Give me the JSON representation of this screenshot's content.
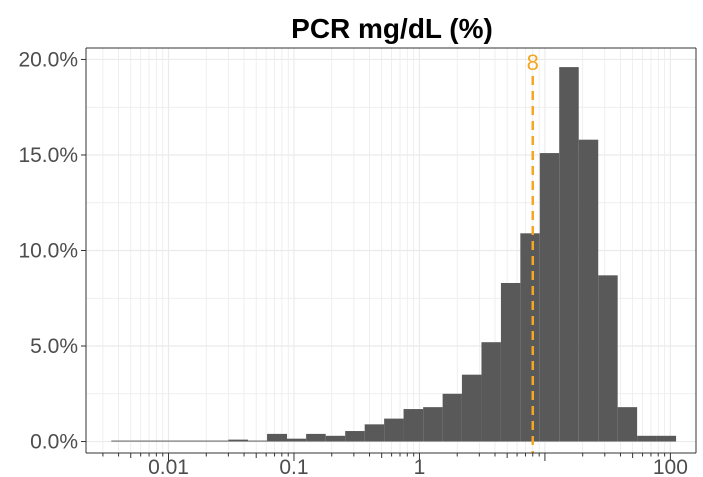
{
  "chart_data": {
    "type": "histogram",
    "title": "PCR mg/dL (%)",
    "xlabel": "",
    "ylabel": "",
    "x_scale": "log10",
    "xlim": [
      0.0022,
      160
    ],
    "ylim": [
      -0.6,
      20.6
    ],
    "grid": true,
    "x_ticks": [
      {
        "value": 0.01,
        "label": "0.01"
      },
      {
        "value": 0.1,
        "label": "0.1"
      },
      {
        "value": 1,
        "label": "1"
      },
      {
        "value": 100,
        "label": "100"
      }
    ],
    "y_ticks": [
      {
        "value": 0,
        "label": "0.0%"
      },
      {
        "value": 5,
        "label": "5.0%"
      },
      {
        "value": 10,
        "label": "10.0%"
      },
      {
        "value": 15,
        "label": "15.0%"
      },
      {
        "value": 20,
        "label": "20.0%"
      }
    ],
    "bins": [
      {
        "from": 0.0035,
        "to": 0.005,
        "value": 0.05
      },
      {
        "from": 0.005,
        "to": 0.0072,
        "value": 0.05
      },
      {
        "from": 0.0072,
        "to": 0.0103,
        "value": 0.05
      },
      {
        "from": 0.0103,
        "to": 0.0147,
        "value": 0.05
      },
      {
        "from": 0.0147,
        "to": 0.021,
        "value": 0.05
      },
      {
        "from": 0.021,
        "to": 0.03,
        "value": 0.05
      },
      {
        "from": 0.03,
        "to": 0.043,
        "value": 0.1
      },
      {
        "from": 0.043,
        "to": 0.061,
        "value": 0.05
      },
      {
        "from": 0.061,
        "to": 0.088,
        "value": 0.4
      },
      {
        "from": 0.088,
        "to": 0.125,
        "value": 0.15
      },
      {
        "from": 0.125,
        "to": 0.179,
        "value": 0.4
      },
      {
        "from": 0.179,
        "to": 0.256,
        "value": 0.3
      },
      {
        "from": 0.256,
        "to": 0.366,
        "value": 0.55
      },
      {
        "from": 0.366,
        "to": 0.523,
        "value": 0.9
      },
      {
        "from": 0.523,
        "to": 0.747,
        "value": 1.2
      },
      {
        "from": 0.747,
        "to": 1.07,
        "value": 1.7
      },
      {
        "from": 1.07,
        "to": 1.53,
        "value": 1.8
      },
      {
        "from": 1.53,
        "to": 2.18,
        "value": 2.5
      },
      {
        "from": 2.18,
        "to": 3.12,
        "value": 3.5
      },
      {
        "from": 3.12,
        "to": 4.46,
        "value": 5.2
      },
      {
        "from": 4.46,
        "to": 6.37,
        "value": 8.3
      },
      {
        "from": 6.37,
        "to": 9.1,
        "value": 10.9
      },
      {
        "from": 9.1,
        "to": 13.0,
        "value": 15.1
      },
      {
        "from": 13.0,
        "to": 18.6,
        "value": 19.6
      },
      {
        "from": 18.6,
        "to": 26.6,
        "value": 15.8
      },
      {
        "from": 26.6,
        "to": 38.0,
        "value": 8.7
      },
      {
        "from": 38.0,
        "to": 54.3,
        "value": 1.8
      },
      {
        "from": 54.3,
        "to": 77.6,
        "value": 0.3
      },
      {
        "from": 77.6,
        "to": 111.0,
        "value": 0.3
      }
    ],
    "reference_line": {
      "value": 8,
      "label": "8",
      "color": "#f5a623"
    },
    "bar_color": "#595959",
    "grid_color": "#ebebeb",
    "axis_color": "#333333"
  }
}
